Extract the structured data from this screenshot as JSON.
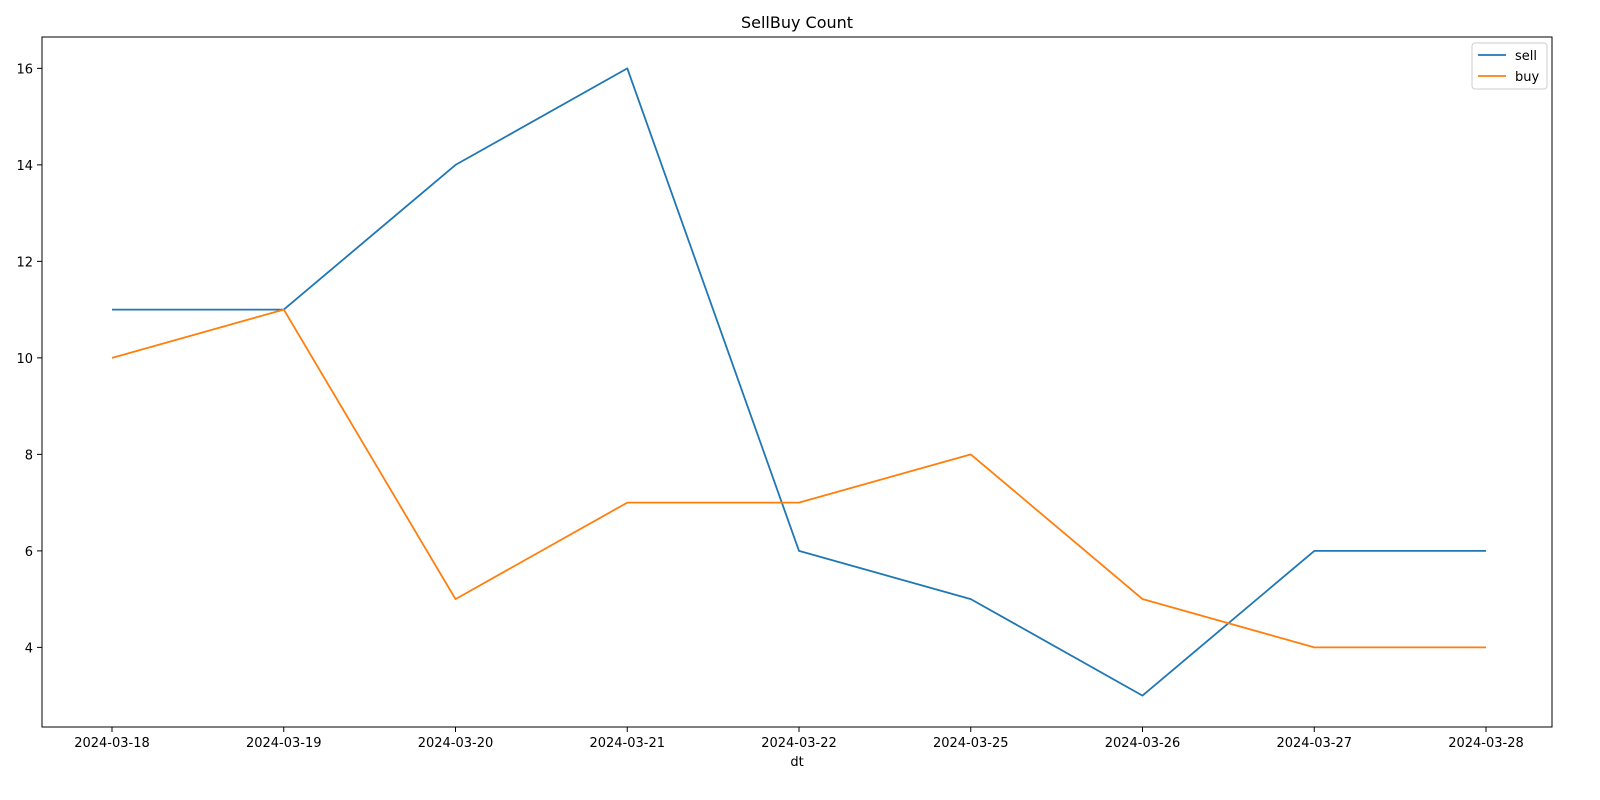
{
  "chart_data": {
    "type": "line",
    "title": "SellBuy Count",
    "xlabel": "dt",
    "ylabel": "",
    "categories": [
      "2024-03-18",
      "2024-03-19",
      "2024-03-20",
      "2024-03-21",
      "2024-03-22",
      "2024-03-25",
      "2024-03-26",
      "2024-03-27",
      "2024-03-28"
    ],
    "series": [
      {
        "name": "sell",
        "color": "#1f77b4",
        "values": [
          11,
          11,
          14,
          16,
          6,
          5,
          3,
          6,
          6
        ]
      },
      {
        "name": "buy",
        "color": "#ff7f0e",
        "values": [
          10,
          11,
          5,
          7,
          7,
          8,
          5,
          4,
          4
        ]
      }
    ],
    "ylim": [
      2.35,
      16.65
    ],
    "yticks": [
      4,
      6,
      8,
      10,
      12,
      14,
      16
    ],
    "grid": false,
    "legend_position": "top-right"
  }
}
